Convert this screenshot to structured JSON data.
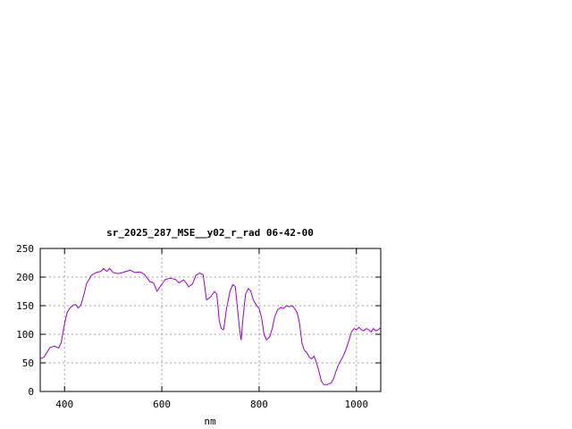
{
  "chart_data": {
    "type": "line",
    "title": "sr_2025_287_MSE__y02_r_rad 06-42-00",
    "xlabel": "nm",
    "ylabel": "",
    "xlim": [
      350,
      1050
    ],
    "ylim": [
      0,
      250
    ],
    "xticks": [
      400,
      600,
      800,
      1000
    ],
    "yticks": [
      0,
      50,
      100,
      150,
      200,
      250
    ],
    "grid": true,
    "series": [
      {
        "color": "#9400d3",
        "points": [
          [
            350,
            57
          ],
          [
            358,
            60
          ],
          [
            365,
            70
          ],
          [
            370,
            77
          ],
          [
            380,
            79
          ],
          [
            388,
            76
          ],
          [
            393,
            85
          ],
          [
            400,
            118
          ],
          [
            405,
            137
          ],
          [
            410,
            145
          ],
          [
            418,
            151
          ],
          [
            423,
            152
          ],
          [
            428,
            146
          ],
          [
            433,
            150
          ],
          [
            440,
            170
          ],
          [
            445,
            188
          ],
          [
            455,
            203
          ],
          [
            465,
            208
          ],
          [
            475,
            210
          ],
          [
            480,
            215
          ],
          [
            487,
            210
          ],
          [
            493,
            215
          ],
          [
            500,
            208
          ],
          [
            510,
            206
          ],
          [
            520,
            208
          ],
          [
            527,
            210
          ],
          [
            535,
            212
          ],
          [
            545,
            208
          ],
          [
            555,
            209
          ],
          [
            565,
            204
          ],
          [
            575,
            192
          ],
          [
            583,
            190
          ],
          [
            590,
            175
          ],
          [
            598,
            185
          ],
          [
            607,
            196
          ],
          [
            618,
            198
          ],
          [
            628,
            196
          ],
          [
            635,
            190
          ],
          [
            645,
            195
          ],
          [
            650,
            190
          ],
          [
            655,
            183
          ],
          [
            663,
            188
          ],
          [
            670,
            203
          ],
          [
            678,
            207
          ],
          [
            685,
            204
          ],
          [
            692,
            160
          ],
          [
            700,
            165
          ],
          [
            708,
            175
          ],
          [
            713,
            170
          ],
          [
            718,
            124
          ],
          [
            722,
            110
          ],
          [
            727,
            108
          ],
          [
            733,
            145
          ],
          [
            740,
            175
          ],
          [
            746,
            187
          ],
          [
            751,
            183
          ],
          [
            755,
            150
          ],
          [
            760,
            107
          ],
          [
            763,
            90
          ],
          [
            767,
            130
          ],
          [
            772,
            170
          ],
          [
            778,
            180
          ],
          [
            783,
            175
          ],
          [
            788,
            160
          ],
          [
            795,
            150
          ],
          [
            800,
            145
          ],
          [
            805,
            130
          ],
          [
            810,
            100
          ],
          [
            815,
            90
          ],
          [
            822,
            96
          ],
          [
            827,
            110
          ],
          [
            832,
            130
          ],
          [
            838,
            143
          ],
          [
            845,
            147
          ],
          [
            850,
            145
          ],
          [
            856,
            150
          ],
          [
            862,
            148
          ],
          [
            868,
            150
          ],
          [
            873,
            145
          ],
          [
            878,
            138
          ],
          [
            883,
            120
          ],
          [
            888,
            85
          ],
          [
            893,
            72
          ],
          [
            898,
            68
          ],
          [
            903,
            60
          ],
          [
            908,
            57
          ],
          [
            913,
            62
          ],
          [
            918,
            50
          ],
          [
            923,
            35
          ],
          [
            928,
            18
          ],
          [
            933,
            12
          ],
          [
            940,
            12
          ],
          [
            948,
            15
          ],
          [
            953,
            22
          ],
          [
            958,
            35
          ],
          [
            965,
            50
          ],
          [
            972,
            60
          ],
          [
            978,
            72
          ],
          [
            985,
            90
          ],
          [
            990,
            104
          ],
          [
            995,
            110
          ],
          [
            1000,
            108
          ],
          [
            1005,
            112
          ],
          [
            1010,
            108
          ],
          [
            1015,
            106
          ],
          [
            1020,
            110
          ],
          [
            1025,
            108
          ],
          [
            1030,
            104
          ],
          [
            1035,
            110
          ],
          [
            1040,
            106
          ],
          [
            1045,
            108
          ],
          [
            1050,
            112
          ]
        ]
      }
    ]
  }
}
